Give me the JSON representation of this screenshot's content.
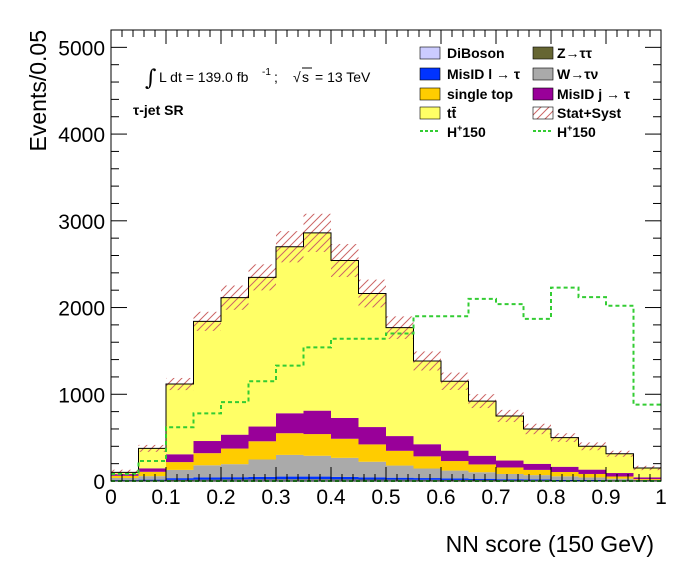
{
  "chart_data": {
    "type": "bar",
    "stacked": true,
    "xlabel": "NN score (150 GeV)",
    "ylabel": "Events/0.05",
    "xlim": [
      0,
      1
    ],
    "ylim": [
      0,
      5200
    ],
    "x_ticks": [
      "0",
      "0.1",
      "0.2",
      "0.3",
      "0.4",
      "0.5",
      "0.6",
      "0.7",
      "0.8",
      "0.9",
      "1"
    ],
    "y_ticks": [
      "0",
      "1000",
      "2000",
      "3000",
      "4000",
      "5000"
    ],
    "bin_edges": [
      0,
      0.05,
      0.1,
      0.15,
      0.2,
      0.25,
      0.3,
      0.35,
      0.4,
      0.45,
      0.5,
      0.55,
      0.6,
      0.65,
      0.7,
      0.75,
      0.8,
      0.85,
      0.9,
      0.95,
      1.0
    ],
    "annotations": {
      "lumi_text": "L dt = 139.0 fb",
      "lumi_sup": "-1",
      "lumi_sep": ";",
      "sqrt_s": "s",
      "energy_text": "= 13 TeV",
      "region": "τ-jet SR"
    },
    "series": [
      {
        "name": "DiBoson",
        "color": "#ccccff",
        "values": [
          3,
          5,
          8,
          10,
          12,
          12,
          13,
          13,
          12,
          11,
          10,
          9,
          8,
          7,
          6,
          5,
          4,
          3,
          2,
          1
        ]
      },
      {
        "name": "Z→ττ",
        "color": "#666633",
        "values": [
          2,
          3,
          5,
          6,
          7,
          8,
          8,
          8,
          7,
          6,
          6,
          5,
          4,
          4,
          3,
          3,
          2,
          2,
          1,
          1
        ]
      },
      {
        "name": "MisID l → τ",
        "color": "#0033ff",
        "values": [
          5,
          8,
          20,
          25,
          25,
          28,
          30,
          30,
          28,
          25,
          22,
          20,
          18,
          15,
          12,
          10,
          8,
          6,
          4,
          2
        ]
      },
      {
        "name": "W→τν",
        "color": "#aaaaaa",
        "values": [
          25,
          40,
          95,
          140,
          150,
          200,
          250,
          240,
          220,
          180,
          140,
          110,
          90,
          75,
          60,
          50,
          40,
          30,
          20,
          8
        ]
      },
      {
        "name": "single top",
        "color": "#ffcc00",
        "values": [
          25,
          50,
          90,
          140,
          180,
          210,
          250,
          250,
          220,
          200,
          170,
          140,
          110,
          90,
          75,
          60,
          50,
          40,
          25,
          10
        ]
      },
      {
        "name": "MisID j → τ",
        "color": "#990099",
        "values": [
          20,
          40,
          90,
          140,
          160,
          170,
          230,
          270,
          240,
          200,
          170,
          140,
          120,
          100,
          80,
          70,
          60,
          50,
          40,
          20
        ]
      },
      {
        "name": "tt̄",
        "color": "#ffff66",
        "values": [
          20,
          230,
          810,
          1380,
          1580,
          1720,
          1920,
          2050,
          1815,
          1540,
          1250,
          960,
          800,
          630,
          514,
          402,
          336,
          269,
          222,
          108
        ]
      }
    ],
    "band": {
      "name": "Stat+Syst",
      "color": "#cc6666",
      "errors": [
        30,
        40,
        70,
        110,
        140,
        150,
        180,
        220,
        190,
        160,
        130,
        110,
        100,
        80,
        70,
        60,
        50,
        45,
        35,
        25
      ]
    },
    "signals": [
      {
        "name": "H",
        "sup": "+",
        "suffix": "150",
        "color": "#33cc33",
        "values": [
          0,
          0,
          0,
          0,
          0,
          0,
          0,
          0,
          0,
          0,
          0,
          0,
          0,
          0,
          0,
          0,
          0,
          0,
          0,
          0
        ]
      },
      {
        "name": "H",
        "sup": "+",
        "suffix": "150",
        "color": "#33cc33",
        "values": [
          80,
          230,
          620,
          780,
          910,
          1150,
          1330,
          1540,
          1640,
          1640,
          1700,
          1900,
          1900,
          2100,
          2040,
          1870,
          2230,
          2120,
          2020,
          880
        ]
      }
    ]
  }
}
